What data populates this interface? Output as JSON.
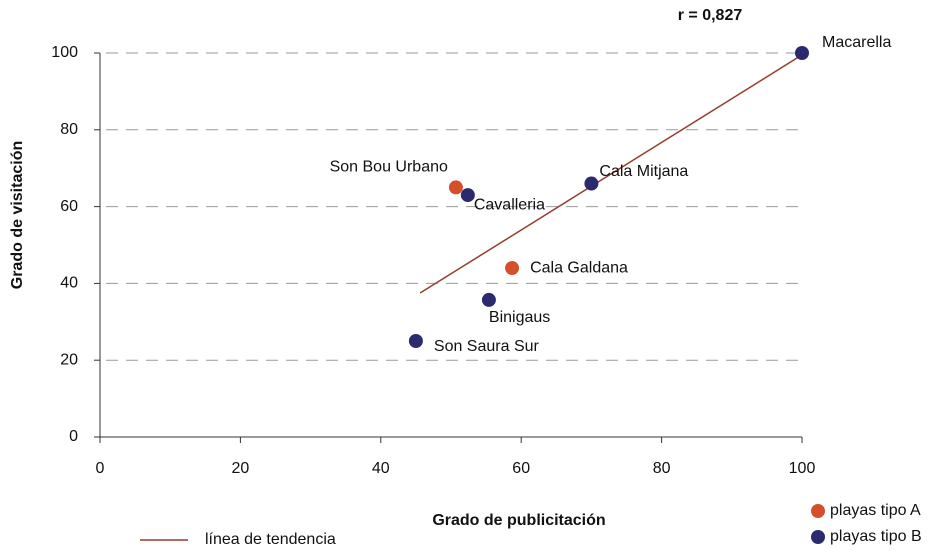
{
  "chart_data": {
    "type": "scatter",
    "annotation": "r = 0,827",
    "x_label": "Grado de publicitación",
    "y_label": "Grado de visitación",
    "xlim": [
      0,
      100
    ],
    "xticks": [
      0,
      20,
      40,
      60,
      80,
      100
    ],
    "ylim": [
      0,
      100
    ],
    "yticks": [
      0,
      20,
      40,
      60,
      80,
      100
    ],
    "grid": "dashed",
    "legend": "bottom-right",
    "series": [
      {
        "name": "playas tipo A",
        "color": "#d4502a",
        "labels": [
          "Son Bou Urbano",
          "Cala Galdana"
        ],
        "x": [
          50.7,
          58.7
        ],
        "values": [
          65,
          44
        ]
      },
      {
        "name": "playas tipo B",
        "color": "#2b2a6e",
        "labels": [
          "Macarella",
          "Cala Mitjana",
          "Cavalleria",
          "Binigaus",
          "Son Saura Sur"
        ],
        "x": [
          100,
          70,
          52.4,
          55.4,
          45
        ],
        "values": [
          100,
          66,
          63,
          35.7,
          25
        ]
      }
    ],
    "trendline": {
      "name": "línea de tendencia",
      "color": "#9a3a2a",
      "x": [
        45.6,
        100
      ],
      "values": [
        37.5,
        99.5
      ]
    }
  }
}
